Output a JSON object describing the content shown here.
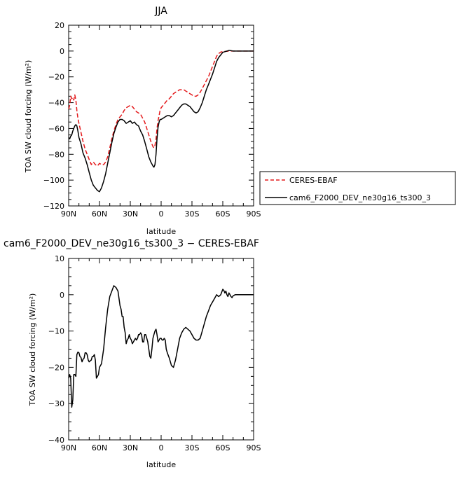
{
  "chart_data": [
    {
      "type": "line",
      "title": "JJA",
      "xlabel": "latitude",
      "ylabel": "TOA SW cloud forcing (W/m²)",
      "xlim": [
        90,
        -90
      ],
      "ylim": [
        -120,
        20
      ],
      "xticks": [
        90,
        60,
        30,
        0,
        -30,
        -60,
        -90
      ],
      "xtick_labels": [
        "90N",
        "60N",
        "30N",
        "0",
        "30S",
        "60S",
        "90S"
      ],
      "yticks": [
        20,
        0,
        -20,
        -40,
        -60,
        -80,
        -100,
        -120
      ],
      "ytick_labels": [
        "20",
        "0",
        "−20",
        "−40",
        "−60",
        "−80",
        "−100",
        "−120"
      ],
      "legend": {
        "placement": "right"
      },
      "series": [
        {
          "name": "CERES-EBAF",
          "color": "#e41a1c",
          "dash": "dashed",
          "x": [
            90,
            89,
            88,
            87,
            86,
            85,
            84,
            83,
            82,
            81,
            80,
            78,
            76,
            74,
            72,
            70,
            68,
            66,
            64,
            62,
            60,
            58,
            56,
            54,
            52,
            50,
            48,
            46,
            44,
            42,
            40,
            38,
            36,
            34,
            32,
            30,
            28,
            26,
            24,
            22,
            20,
            18,
            16,
            14,
            12,
            10,
            8,
            7,
            6,
            5,
            4,
            3,
            2,
            1,
            0,
            -2,
            -4,
            -6,
            -8,
            -10,
            -12,
            -14,
            -16,
            -18,
            -20,
            -22,
            -24,
            -26,
            -28,
            -30,
            -32,
            -34,
            -36,
            -38,
            -40,
            -42,
            -44,
            -46,
            -48,
            -50,
            -52,
            -54,
            -56,
            -58,
            -60,
            -62,
            -64,
            -66,
            -68,
            -70,
            -72,
            -74,
            -76,
            -78,
            -80,
            -82,
            -84,
            -86,
            -88,
            -90
          ],
          "y": [
            -45,
            -42,
            -35,
            -37,
            -36,
            -38,
            -34,
            -38,
            -46,
            -52,
            -56,
            -63,
            -70,
            -76,
            -80,
            -84,
            -88,
            -86,
            -88,
            -89,
            -87,
            -88,
            -88,
            -86,
            -82,
            -75,
            -68,
            -62,
            -57,
            -53,
            -51,
            -49,
            -46,
            -44,
            -43,
            -42,
            -43,
            -45,
            -47,
            -48,
            -49,
            -52,
            -55,
            -60,
            -65,
            -70,
            -74,
            -75,
            -73,
            -68,
            -60,
            -54,
            -50,
            -46,
            -44,
            -42,
            -40,
            -38,
            -37,
            -35,
            -33,
            -32,
            -31,
            -30,
            -30,
            -30,
            -31,
            -32,
            -33,
            -34,
            -35,
            -35,
            -34,
            -32,
            -29,
            -26,
            -23,
            -20,
            -16,
            -12,
            -8,
            -4,
            -2,
            -0.8,
            -0.5,
            -0.3,
            -0.2,
            0,
            0,
            0,
            0,
            0,
            0,
            0,
            0,
            0,
            0,
            0,
            0,
            0
          ]
        },
        {
          "name": "cam6_F2000_DEV_ne30g16_ts300_3",
          "color": "#000000",
          "dash": "solid",
          "x": [
            90,
            89,
            88,
            87,
            86,
            85,
            84,
            83,
            82,
            81,
            80,
            78,
            76,
            74,
            72,
            70,
            68,
            66,
            64,
            62,
            60,
            58,
            56,
            54,
            52,
            50,
            48,
            46,
            44,
            42,
            40,
            38,
            36,
            34,
            32,
            30,
            28,
            26,
            24,
            22,
            20,
            18,
            16,
            14,
            12,
            10,
            8,
            7,
            6,
            5,
            4,
            3,
            2,
            1,
            0,
            -2,
            -4,
            -6,
            -8,
            -10,
            -12,
            -14,
            -16,
            -18,
            -20,
            -22,
            -24,
            -26,
            -28,
            -30,
            -32,
            -34,
            -36,
            -38,
            -40,
            -42,
            -44,
            -46,
            -48,
            -50,
            -52,
            -54,
            -56,
            -58,
            -60,
            -62,
            -64,
            -66,
            -68,
            -70,
            -72,
            -74,
            -76,
            -78,
            -80,
            -82,
            -84,
            -86,
            -88,
            -90
          ],
          "y": [
            -67,
            -68,
            -66,
            -65,
            -62,
            -60,
            -58,
            -57,
            -58,
            -62,
            -67,
            -72,
            -79,
            -83,
            -88,
            -94,
            -100,
            -104,
            -106,
            -108,
            -109,
            -106,
            -101,
            -95,
            -87,
            -79,
            -71,
            -64,
            -59,
            -55,
            -53,
            -53,
            -54,
            -56,
            -55,
            -54,
            -56,
            -55,
            -57,
            -58,
            -62,
            -65,
            -70,
            -76,
            -82,
            -86,
            -89,
            -90,
            -88,
            -80,
            -68,
            -59,
            -55,
            -53,
            -53,
            -52,
            -51,
            -50,
            -50,
            -51,
            -50,
            -48,
            -46,
            -44,
            -42,
            -41,
            -41,
            -42,
            -43,
            -45,
            -47,
            -48,
            -47,
            -44,
            -40,
            -35,
            -30,
            -26,
            -22,
            -18,
            -13,
            -8,
            -5,
            -3,
            -1,
            -0.5,
            0,
            0.5,
            0.3,
            0,
            0,
            0,
            0,
            0,
            0,
            0,
            0,
            0,
            0,
            0
          ]
        }
      ]
    },
    {
      "type": "line",
      "title": "cam6_F2000_DEV_ne30g16_ts300_3 − CERES-EBAF",
      "xlabel": "latitude",
      "ylabel": "TOA SW cloud forcing (W/m²)",
      "xlim": [
        90,
        -90
      ],
      "ylim": [
        -40,
        10
      ],
      "xticks": [
        90,
        60,
        30,
        0,
        -30,
        -60,
        -90
      ],
      "xtick_labels": [
        "90N",
        "60N",
        "30N",
        "0",
        "30S",
        "60S",
        "90S"
      ],
      "yticks": [
        10,
        0,
        -10,
        -20,
        -30,
        -40
      ],
      "ytick_labels": [
        "10",
        "0",
        "−10",
        "−20",
        "−30",
        "−40"
      ],
      "series": [
        {
          "color": "#000000",
          "dash": "solid",
          "x": [
            90,
            89,
            88,
            87,
            86,
            85,
            84,
            83,
            82,
            81,
            80,
            79,
            78,
            77,
            76,
            75,
            74,
            73,
            72,
            71,
            70,
            69,
            68,
            67,
            66,
            65,
            64,
            63,
            62,
            61,
            60,
            58,
            56,
            54,
            52,
            50,
            48,
            46,
            44,
            42,
            40,
            39,
            38,
            37,
            36,
            35,
            34,
            33,
            32,
            31,
            30,
            29,
            28,
            27,
            26,
            25,
            24,
            23,
            22,
            21,
            20,
            19,
            18,
            17,
            16,
            15,
            14,
            13,
            12,
            11,
            10,
            9,
            8,
            7,
            6,
            5,
            4,
            3,
            2,
            1,
            0,
            -1,
            -2,
            -3,
            -4,
            -5,
            -6,
            -8,
            -10,
            -12,
            -14,
            -16,
            -18,
            -20,
            -22,
            -24,
            -26,
            -28,
            -30,
            -32,
            -34,
            -36,
            -38,
            -40,
            -42,
            -44,
            -46,
            -48,
            -50,
            -52,
            -54,
            -56,
            -58,
            -60,
            -61,
            -62,
            -63,
            -64,
            -65,
            -66,
            -67,
            -68,
            -69,
            -70,
            -72,
            -74,
            -76,
            -78,
            -80,
            -82,
            -84,
            -86,
            -88,
            -90
          ],
          "y": [
            -23,
            -22,
            -23,
            -31,
            -29,
            -22,
            -22,
            -22.5,
            -16.5,
            -15.8,
            -16,
            -17,
            -17.3,
            -18.5,
            -17.8,
            -17.5,
            -16,
            -16,
            -16.5,
            -18,
            -18.5,
            -18.2,
            -18,
            -17,
            -17,
            -16.5,
            -18,
            -23,
            -22.5,
            -22,
            -20,
            -19,
            -15,
            -9,
            -4,
            -0.5,
            1,
            2.5,
            2,
            1,
            -3,
            -4,
            -6,
            -6,
            -9,
            -10.5,
            -13.5,
            -12.5,
            -12,
            -11,
            -12,
            -12.5,
            -13.5,
            -13,
            -12.5,
            -12,
            -12.5,
            -12,
            -11,
            -11,
            -10.5,
            -11,
            -13,
            -13,
            -11,
            -11,
            -12,
            -13,
            -15,
            -17,
            -17.5,
            -15,
            -12,
            -11,
            -10,
            -9.5,
            -11,
            -13,
            -12.5,
            -12,
            -12,
            -12.5,
            -12.5,
            -12,
            -12.5,
            -15,
            -16,
            -17.5,
            -19.5,
            -20,
            -18,
            -15,
            -12,
            -10.5,
            -9.5,
            -9,
            -9.5,
            -10,
            -11,
            -12,
            -12.5,
            -12.5,
            -12,
            -10,
            -8,
            -6,
            -4.5,
            -3,
            -2,
            -1,
            0,
            -0.5,
            0,
            1.5,
            1.2,
            0.5,
            1,
            0,
            -0.5,
            0.5,
            0,
            -0.5,
            -0.8,
            -0.3,
            0,
            0,
            0,
            0,
            0,
            0,
            0,
            0,
            0,
            0
          ]
        }
      ]
    }
  ]
}
